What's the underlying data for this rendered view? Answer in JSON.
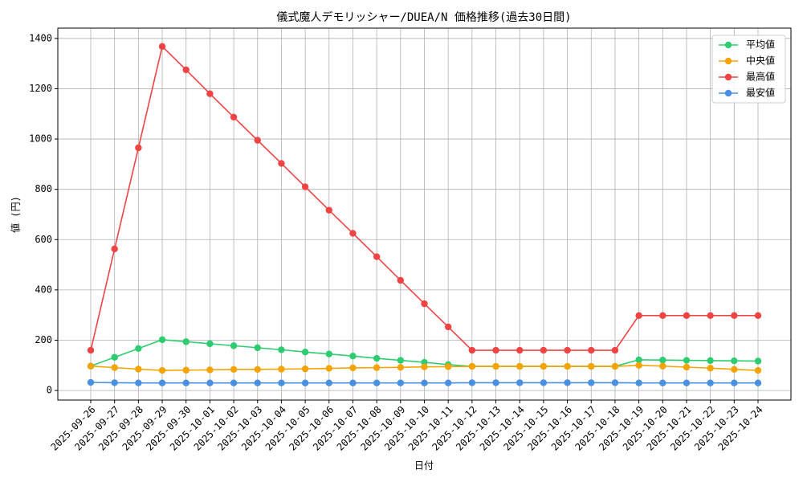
{
  "chart_data": {
    "type": "line",
    "title": "儀式魔人デモリッシャー/DUEA/N 価格推移(過去30日間)",
    "xlabel": "日付",
    "ylabel": "値 (円)",
    "categories": [
      "2025-09-26",
      "2025-09-27",
      "2025-09-28",
      "2025-09-29",
      "2025-09-30",
      "2025-10-01",
      "2025-10-02",
      "2025-10-03",
      "2025-10-04",
      "2025-10-05",
      "2025-10-06",
      "2025-10-07",
      "2025-10-08",
      "2025-10-09",
      "2025-10-10",
      "2025-10-11",
      "2025-10-12",
      "2025-10-13",
      "2025-10-14",
      "2025-10-15",
      "2025-10-16",
      "2025-10-17",
      "2025-10-18",
      "2025-10-19",
      "2025-10-20",
      "2025-10-21",
      "2025-10-22",
      "2025-10-23",
      "2025-10-24"
    ],
    "series": [
      {
        "name": "平均値",
        "color": "#2ecc71",
        "values": [
          97,
          132,
          167,
          202,
          194,
          186,
          178,
          170,
          162,
          153,
          145,
          137,
          128,
          120,
          112,
          103,
          96,
          96,
          96,
          96,
          96,
          96,
          96,
          122,
          121,
          120,
          119,
          118,
          117
        ]
      },
      {
        "name": "中央値",
        "color": "#f5a300",
        "values": [
          97,
          91,
          85,
          80,
          81,
          82,
          84,
          84,
          85,
          86,
          88,
          90,
          91,
          92,
          94,
          95,
          96,
          96,
          96,
          96,
          96,
          96,
          96,
          100,
          97,
          93,
          89,
          84,
          80
        ]
      },
      {
        "name": "最高値",
        "color": "#ef4444",
        "values": [
          160,
          563,
          965,
          1368,
          1275,
          1180,
          1087,
          995,
          903,
          810,
          717,
          625,
          532,
          438,
          345,
          253,
          160,
          160,
          160,
          160,
          160,
          160,
          160,
          298,
          298,
          298,
          298,
          298,
          298
        ]
      },
      {
        "name": "最安値",
        "color": "#4a90e2",
        "values": [
          32,
          31,
          30,
          30,
          30,
          30,
          30,
          30,
          30,
          30,
          30,
          30,
          30,
          30,
          30,
          30,
          31,
          31,
          31,
          31,
          31,
          31,
          31,
          30,
          30,
          30,
          30,
          30,
          30
        ]
      }
    ],
    "ylim": [
      -38,
      1441
    ],
    "yticks": [
      0,
      200,
      400,
      600,
      800,
      1000,
      1200,
      1400
    ],
    "grid": true,
    "legend": "upper right"
  }
}
